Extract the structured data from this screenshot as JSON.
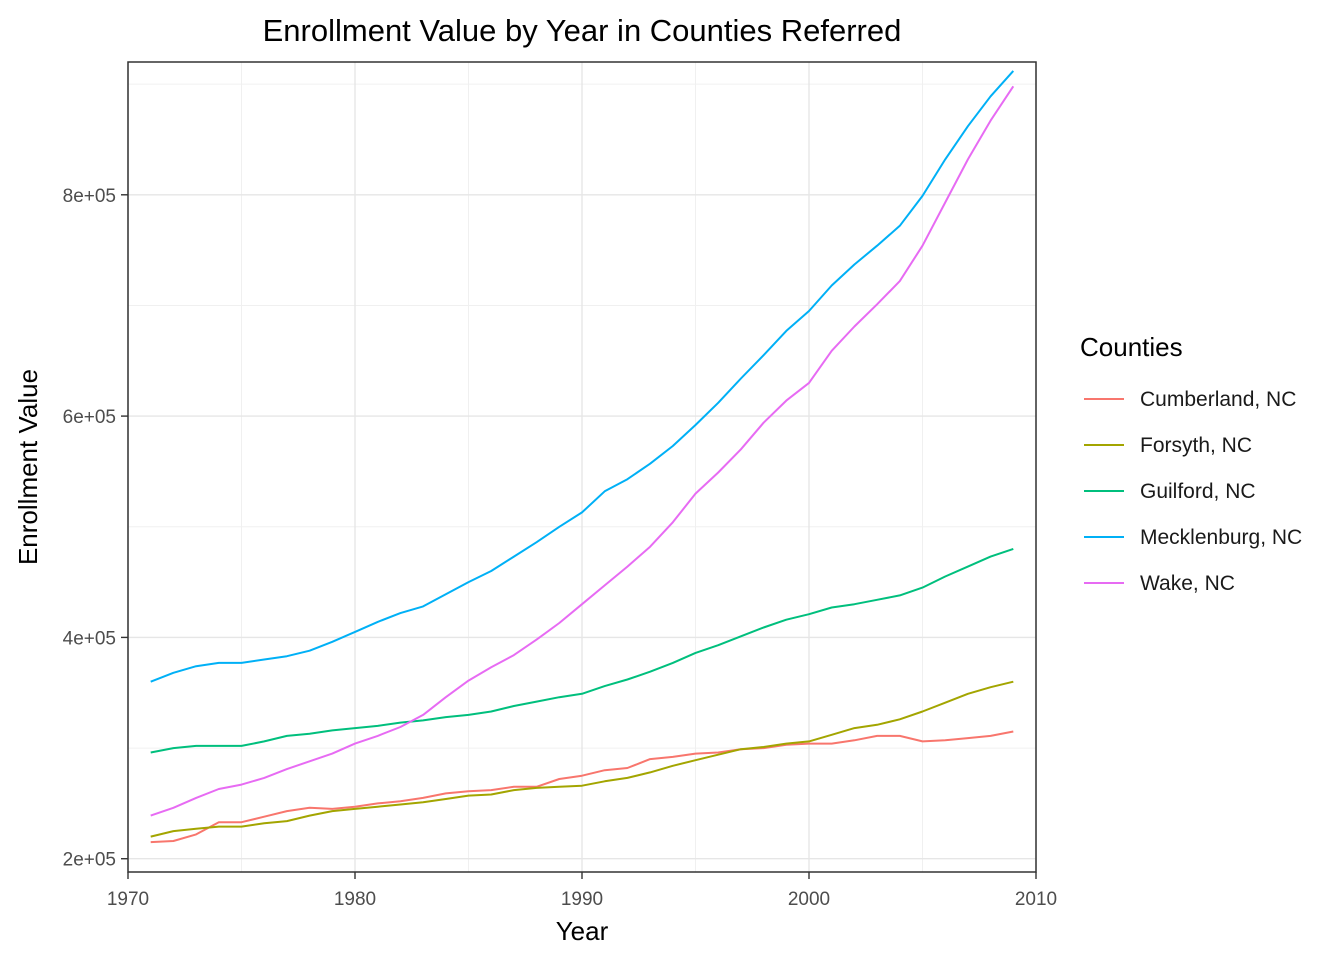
{
  "chart_data": {
    "type": "line",
    "title": "Enrollment Value by Year in Counties Referred",
    "xlabel": "Year",
    "ylabel": "Enrollment Value",
    "xlim": [
      1970,
      2010
    ],
    "ylim": [
      188000,
      920000
    ],
    "x_ticks": [
      1970,
      1980,
      1990,
      2000,
      2010
    ],
    "x_tick_labels": [
      "1970",
      "1980",
      "1990",
      "2000",
      "2010"
    ],
    "y_ticks": [
      200000,
      400000,
      600000,
      800000
    ],
    "y_tick_labels": [
      "2e+05",
      "4e+05",
      "6e+05",
      "8e+05"
    ],
    "grid": true,
    "legend": {
      "title": "Counties",
      "position": "right"
    },
    "x": [
      1971,
      1972,
      1973,
      1974,
      1975,
      1976,
      1977,
      1978,
      1979,
      1980,
      1981,
      1982,
      1983,
      1984,
      1985,
      1986,
      1987,
      1988,
      1989,
      1990,
      1991,
      1992,
      1993,
      1994,
      1995,
      1996,
      1997,
      1998,
      1999,
      2000,
      2001,
      2002,
      2003,
      2004,
      2005,
      2006,
      2007,
      2008,
      2009
    ],
    "series": [
      {
        "name": "Cumberland, NC",
        "color": "#F8766D",
        "values": [
          215000,
          216000,
          222000,
          233000,
          233000,
          238000,
          243000,
          246000,
          245000,
          247000,
          250000,
          252000,
          255000,
          259000,
          261000,
          262000,
          265000,
          265000,
          272000,
          275000,
          280000,
          282000,
          290000,
          292000,
          295000,
          296000,
          299000,
          300000,
          303000,
          304000,
          304000,
          307000,
          311000,
          311000,
          306000,
          307000,
          309000,
          311000,
          315000
        ]
      },
      {
        "name": "Forsyth, NC",
        "color": "#A3A500",
        "values": [
          220000,
          225000,
          227000,
          229000,
          229000,
          232000,
          234000,
          239000,
          243000,
          245000,
          247000,
          249000,
          251000,
          254000,
          257000,
          258000,
          262000,
          264000,
          265000,
          266000,
          270000,
          273000,
          278000,
          284000,
          289000,
          294000,
          299000,
          301000,
          304000,
          306000,
          312000,
          318000,
          321000,
          326000,
          333000,
          341000,
          349000,
          355000,
          360000
        ]
      },
      {
        "name": "Guilford, NC",
        "color": "#00BF7D",
        "values": [
          296000,
          300000,
          302000,
          302000,
          302000,
          306000,
          311000,
          313000,
          316000,
          318000,
          320000,
          323000,
          325000,
          328000,
          330000,
          333000,
          338000,
          342000,
          346000,
          349000,
          356000,
          362000,
          369000,
          377000,
          386000,
          393000,
          401000,
          409000,
          416000,
          421000,
          427000,
          430000,
          434000,
          438000,
          445000,
          455000,
          464000,
          473000,
          480000
        ]
      },
      {
        "name": "Mecklenburg, NC",
        "color": "#00B0F6",
        "values": [
          360000,
          368000,
          374000,
          377000,
          377000,
          380000,
          383000,
          388000,
          396000,
          405000,
          414000,
          422000,
          428000,
          439000,
          450000,
          460000,
          473000,
          486000,
          500000,
          513000,
          532000,
          543000,
          557000,
          573000,
          592000,
          612000,
          634000,
          655000,
          677000,
          695000,
          718000,
          737000,
          754000,
          772000,
          799000,
          832000,
          862000,
          889000,
          912000
        ]
      },
      {
        "name": "Wake, NC",
        "color": "#E76BF3",
        "values": [
          239000,
          246000,
          255000,
          263000,
          267000,
          273000,
          281000,
          288000,
          295000,
          304000,
          311000,
          319000,
          330000,
          346000,
          361000,
          373000,
          384000,
          398000,
          413000,
          430000,
          447000,
          464000,
          482000,
          504000,
          530000,
          549000,
          570000,
          594000,
          614000,
          630000,
          659000,
          681000,
          701000,
          722000,
          754000,
          793000,
          832000,
          867000,
          898000
        ]
      }
    ]
  }
}
